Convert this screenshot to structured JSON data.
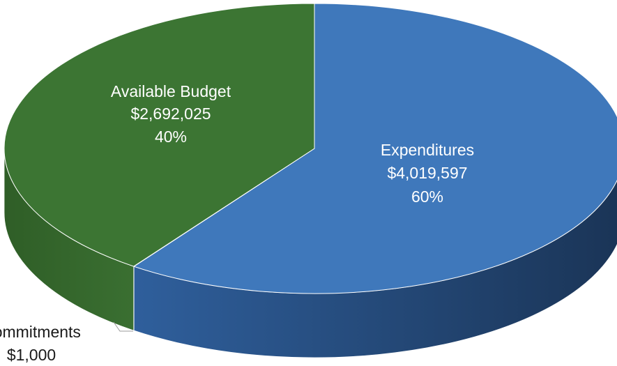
{
  "chart_data": {
    "type": "pie",
    "title": "",
    "slices": [
      {
        "name": "Expenditures",
        "value": 4019597,
        "value_label": "$4,019,597",
        "percent_label": "60%",
        "color": "#3f78bb",
        "side_color": "#254d82"
      },
      {
        "name": "Commitments",
        "value": 1000,
        "value_label": "$1,000",
        "percent_label": "",
        "color": "#c9a227",
        "side_color": "#8a6d17"
      },
      {
        "name": "Available Budget",
        "value": 2692025,
        "value_label": "$2,692,025",
        "percent_label": "40%",
        "color": "#3c7533",
        "side_color": "#2b5624"
      }
    ],
    "style": "3d",
    "legend": "none"
  }
}
